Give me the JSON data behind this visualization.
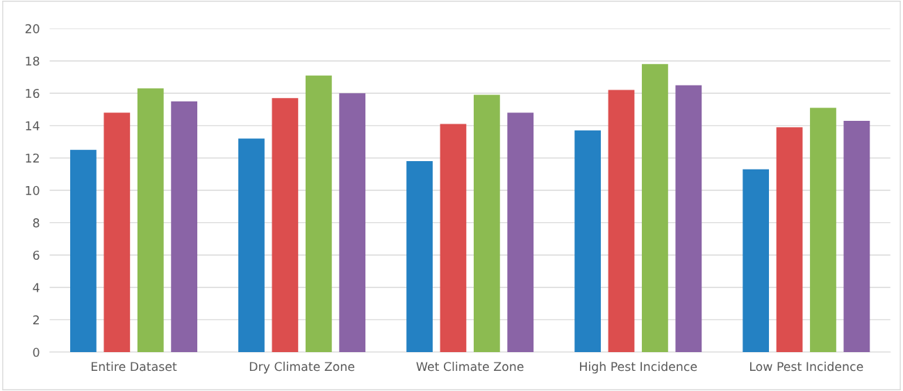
{
  "chart_data": {
    "type": "bar",
    "categories": [
      "Entire Dataset",
      "Dry Climate Zone",
      "Wet Climate Zone",
      "High Pest Incidence",
      "Low Pest Incidence"
    ],
    "series": [
      {
        "color": "#2481c3",
        "values": [
          12.5,
          13.2,
          11.8,
          13.7,
          11.3
        ]
      },
      {
        "color": "#dc4e4e",
        "values": [
          14.8,
          15.7,
          14.1,
          16.2,
          13.9
        ]
      },
      {
        "color": "#8cbb51",
        "values": [
          16.3,
          17.1,
          15.9,
          17.8,
          15.1
        ]
      },
      {
        "color": "#8a64a6",
        "values": [
          15.5,
          16.0,
          14.8,
          16.5,
          14.3
        ]
      }
    ],
    "ylim": [
      0,
      20
    ],
    "yticks": [
      0,
      2,
      4,
      6,
      8,
      10,
      12,
      14,
      16,
      18,
      20
    ],
    "grid": "y"
  }
}
